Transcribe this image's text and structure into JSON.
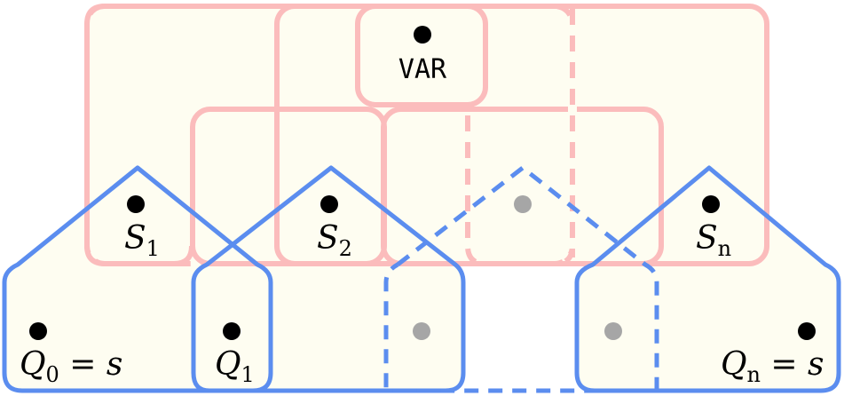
{
  "colors": {
    "fill": "#fefdf1",
    "pink": "#fbbcbc",
    "blue": "#5b8def",
    "dot": "#000000",
    "gray_dot": "#a6a6a6",
    "background": "#ffffff"
  },
  "labels": {
    "var": "VAR",
    "s1": {
      "base": "S",
      "sub": "1"
    },
    "s2": {
      "base": "S",
      "sub": "2"
    },
    "sn": {
      "base": "S",
      "sub": "n"
    },
    "q0": {
      "base": "Q",
      "sub": "0",
      "tail": " = s"
    },
    "q1": {
      "base": "Q",
      "sub": "1"
    },
    "qn": {
      "base": "Q",
      "sub": "n",
      "tail": " = s"
    }
  }
}
